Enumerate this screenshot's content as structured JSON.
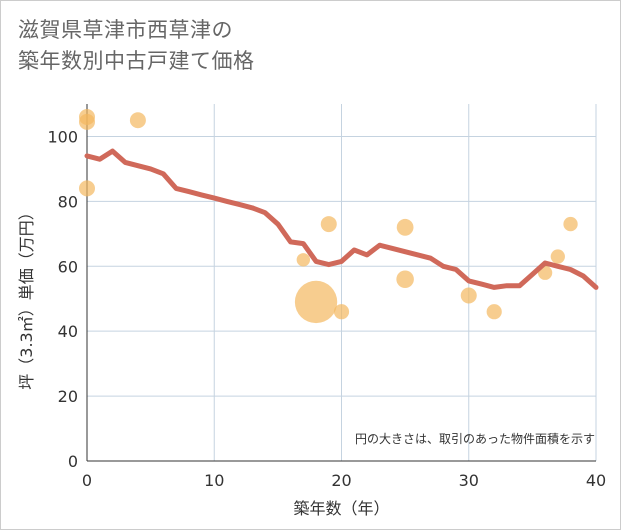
{
  "title_line1": "滋賀県草津市西草津の",
  "title_line2": "築年数別中古戸建て価格",
  "chart_data": {
    "type": "scatter+line",
    "xlabel": "築年数（年）",
    "ylabel": "坪（3.3㎡）単価（万円）",
    "xlim": [
      0,
      40
    ],
    "ylim": [
      0,
      110
    ],
    "xticks": [
      0,
      10,
      20,
      30,
      40
    ],
    "yticks": [
      0,
      20,
      40,
      60,
      80,
      100
    ],
    "grid": true,
    "note": "円の大きさは、取引のあった物件面積を示す",
    "line_series": {
      "name": "平均単価",
      "color": "#d0695a",
      "x": [
        0,
        1,
        2,
        3,
        4,
        5,
        6,
        7,
        8,
        9,
        10,
        11,
        12,
        13,
        14,
        15,
        16,
        17,
        18,
        19,
        20,
        21,
        22,
        23,
        24,
        25,
        26,
        27,
        28,
        29,
        30,
        31,
        32,
        33,
        34,
        35,
        36,
        37,
        38,
        39,
        40
      ],
      "y": [
        94,
        93,
        95.5,
        92,
        91,
        90,
        88.5,
        84,
        83,
        82,
        81,
        80,
        79,
        78,
        76.5,
        73,
        67.5,
        67,
        61.5,
        60.5,
        61.5,
        65,
        63.5,
        66.5,
        65.5,
        64.5,
        63.5,
        62.5,
        60,
        59,
        55.5,
        54.5,
        53.5,
        54,
        54,
        57.5,
        61,
        60,
        59,
        57,
        53.5
      ]
    },
    "scatter_series": {
      "name": "取引事例",
      "color": "#f4b860",
      "points": [
        {
          "x": 0,
          "y": 106,
          "size": 1.0
        },
        {
          "x": 0,
          "y": 104.5,
          "size": 1.0
        },
        {
          "x": 0,
          "y": 84,
          "size": 1.0
        },
        {
          "x": 4,
          "y": 105,
          "size": 1.0
        },
        {
          "x": 17,
          "y": 62,
          "size": 0.7
        },
        {
          "x": 18,
          "y": 49,
          "size": 7.0
        },
        {
          "x": 19,
          "y": 73,
          "size": 1.0
        },
        {
          "x": 20,
          "y": 46,
          "size": 0.9
        },
        {
          "x": 25,
          "y": 72,
          "size": 1.1
        },
        {
          "x": 25,
          "y": 56,
          "size": 1.2
        },
        {
          "x": 30,
          "y": 51,
          "size": 1.0
        },
        {
          "x": 32,
          "y": 46,
          "size": 0.9
        },
        {
          "x": 36,
          "y": 58,
          "size": 0.8
        },
        {
          "x": 37,
          "y": 63,
          "size": 0.8
        },
        {
          "x": 38,
          "y": 73,
          "size": 0.8
        }
      ]
    }
  }
}
